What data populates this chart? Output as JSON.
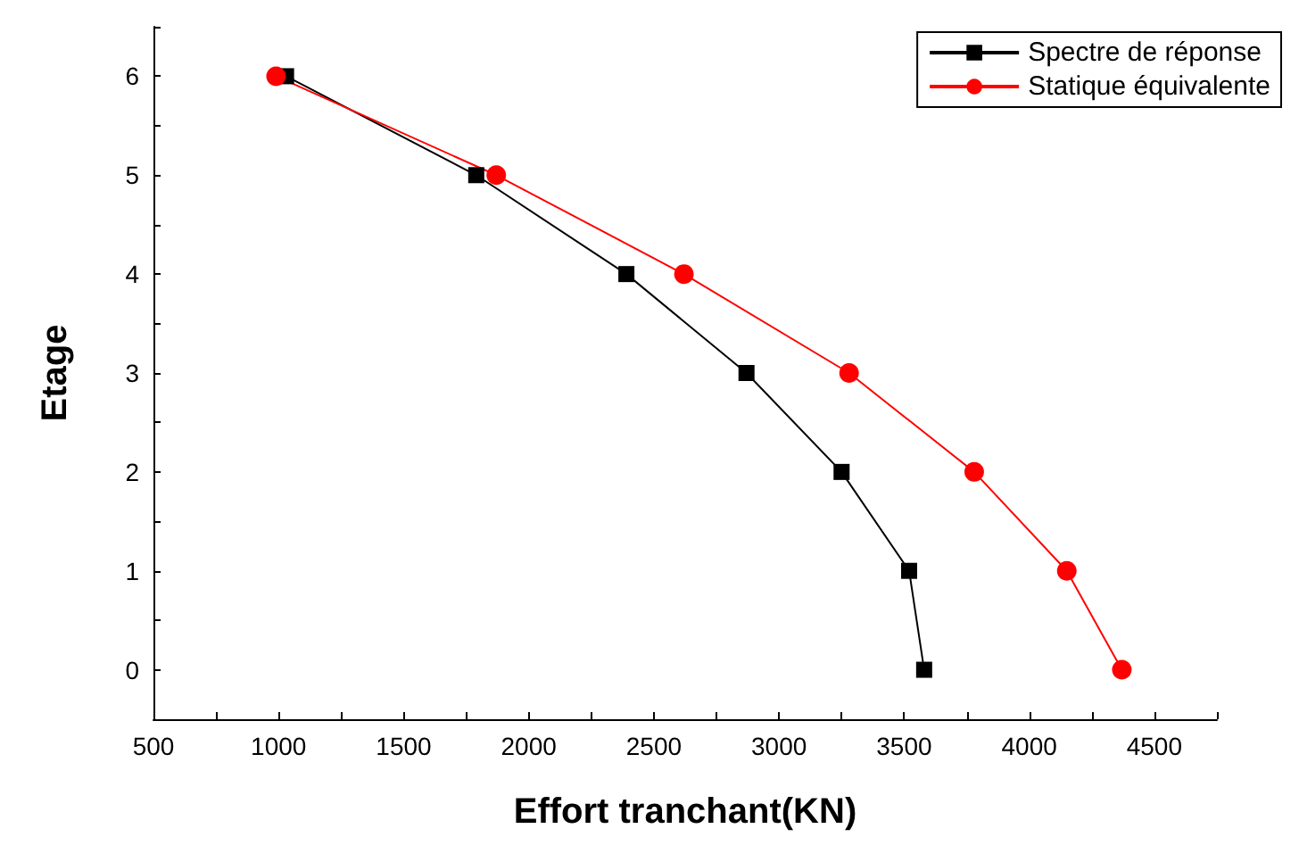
{
  "chart_data": {
    "type": "line",
    "xlabel": "Effort tranchant(KN)",
    "ylabel": "Etage",
    "x": [
      1030,
      1790,
      2390,
      2870,
      3250,
      3520,
      3580
    ],
    "series": [
      {
        "name": "Spectre de réponse",
        "color": "#000000",
        "marker": "square",
        "values": [
          6,
          5,
          4,
          3,
          2,
          1,
          0
        ]
      },
      {
        "name": "Statique équivalente",
        "color": "#ff0000",
        "marker": "circle",
        "x": [
          990,
          1870,
          2620,
          3280,
          3780,
          4150,
          4370
        ],
        "values": [
          6,
          5,
          4,
          3,
          2,
          1,
          0
        ]
      }
    ],
    "xlim": [
      500,
      4750
    ],
    "xticks": [
      500,
      1000,
      1500,
      2000,
      2500,
      3000,
      3500,
      4000,
      4500
    ],
    "ylim": [
      -0.5,
      6.5
    ],
    "yticks": [
      0,
      1,
      2,
      3,
      4,
      5,
      6
    ],
    "grid": false,
    "legend": "top right",
    "line_style": "solid"
  }
}
